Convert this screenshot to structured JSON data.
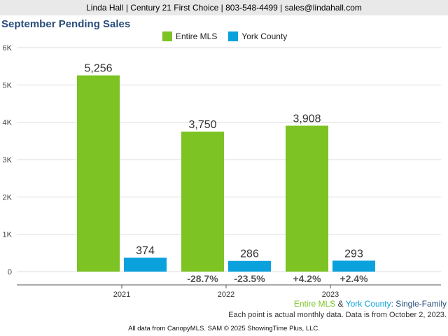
{
  "header": {
    "contact_line": "Linda Hall | Century 21 First Choice | 803-548-4499 | sales@lindahall.com"
  },
  "colors": {
    "entire_mls": "#7cc323",
    "york_county": "#0aa1dd",
    "title": "#2a4d7a"
  },
  "footer": {
    "series_a": "Entire MLS",
    "amp": " & ",
    "series_b": "York County",
    "series_suffix": ": Single-Family",
    "note": "Each point is actual monthly data. Data is from October 2, 2023.",
    "credit": "All data from CanopyMLS. SAM © 2025 ShowingTime Plus, LLC."
  },
  "chart_data": {
    "type": "bar",
    "title": "September Pending Sales",
    "categories": [
      "2021",
      "2022",
      "2023"
    ],
    "series": [
      {
        "name": "Entire MLS",
        "values": [
          5256,
          3750,
          3908
        ],
        "labels": [
          "5,256",
          "3,750",
          "3,908"
        ],
        "changes": [
          "",
          "-28.7%",
          "+4.2%"
        ]
      },
      {
        "name": "York County",
        "values": [
          374,
          286,
          293
        ],
        "labels": [
          "374",
          "286",
          "293"
        ],
        "changes": [
          "",
          "-23.5%",
          "+2.4%"
        ]
      }
    ],
    "ylim": [
      0,
      6000
    ],
    "yticks": [
      0,
      1000,
      2000,
      3000,
      4000,
      5000,
      6000
    ],
    "ytick_labels": [
      "0",
      "1K",
      "2K",
      "3K",
      "4K",
      "5K",
      "6K"
    ],
    "grid": true,
    "legend": "top-center"
  }
}
